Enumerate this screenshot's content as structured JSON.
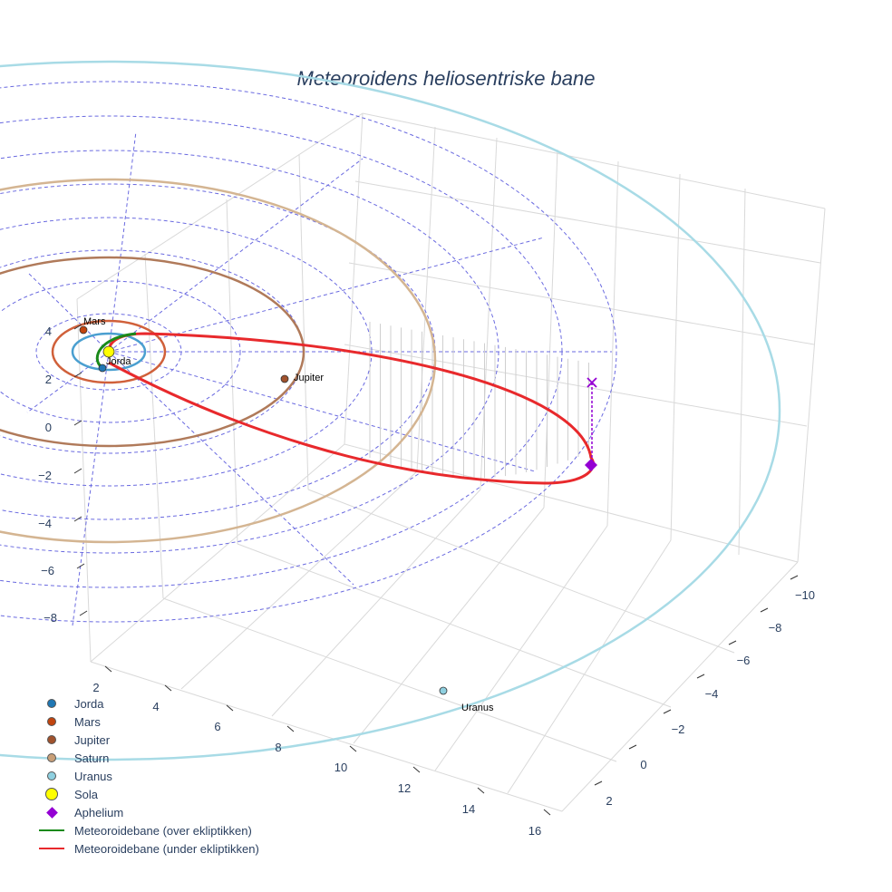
{
  "chart_data": {
    "type": "scatter3d",
    "title": "Meteoroidens heliosentriske bane",
    "axes": {
      "y_ticks": [
        "4",
        "2",
        "0",
        "−2",
        "−4",
        "−6",
        "−8"
      ],
      "x_ticks": [
        "2",
        "4",
        "6",
        "8",
        "10",
        "12",
        "14",
        "16"
      ],
      "z_ticks": [
        "−10",
        "−8",
        "−6",
        "−4",
        "−2",
        "0",
        "2"
      ]
    },
    "bodies": [
      {
        "name": "Jorda",
        "color": "#1f77b4",
        "orbit_color": "#4a9fd0",
        "label": "Jorda"
      },
      {
        "name": "Mars",
        "color": "#c1440e",
        "orbit_color": "#d0603a",
        "label": "Mars"
      },
      {
        "name": "Jupiter",
        "color": "#a0522d",
        "orbit_color": "#b07a5a",
        "label": "Jupiter"
      },
      {
        "name": "Saturn",
        "color": "#c89f78",
        "orbit_color": "#d4b592",
        "label": ""
      },
      {
        "name": "Uranus",
        "color": "#8fd0e0",
        "orbit_color": "#a8dbe6",
        "label": "Uranus"
      },
      {
        "name": "Sola",
        "color": "#ffff00",
        "orbit_color": "",
        "label": ""
      }
    ],
    "markers": [
      {
        "name": "Aphelium",
        "color": "#9400d3",
        "symbol": "diamond"
      }
    ],
    "trajectory": [
      {
        "name": "Meteoroidebane (over ekliptikken)",
        "color": "#1a8a1a"
      },
      {
        "name": "Meteoroidebane (under ekliptikken)",
        "color": "#e8292c"
      }
    ],
    "legend_position": "bottom-left",
    "grid": true
  }
}
